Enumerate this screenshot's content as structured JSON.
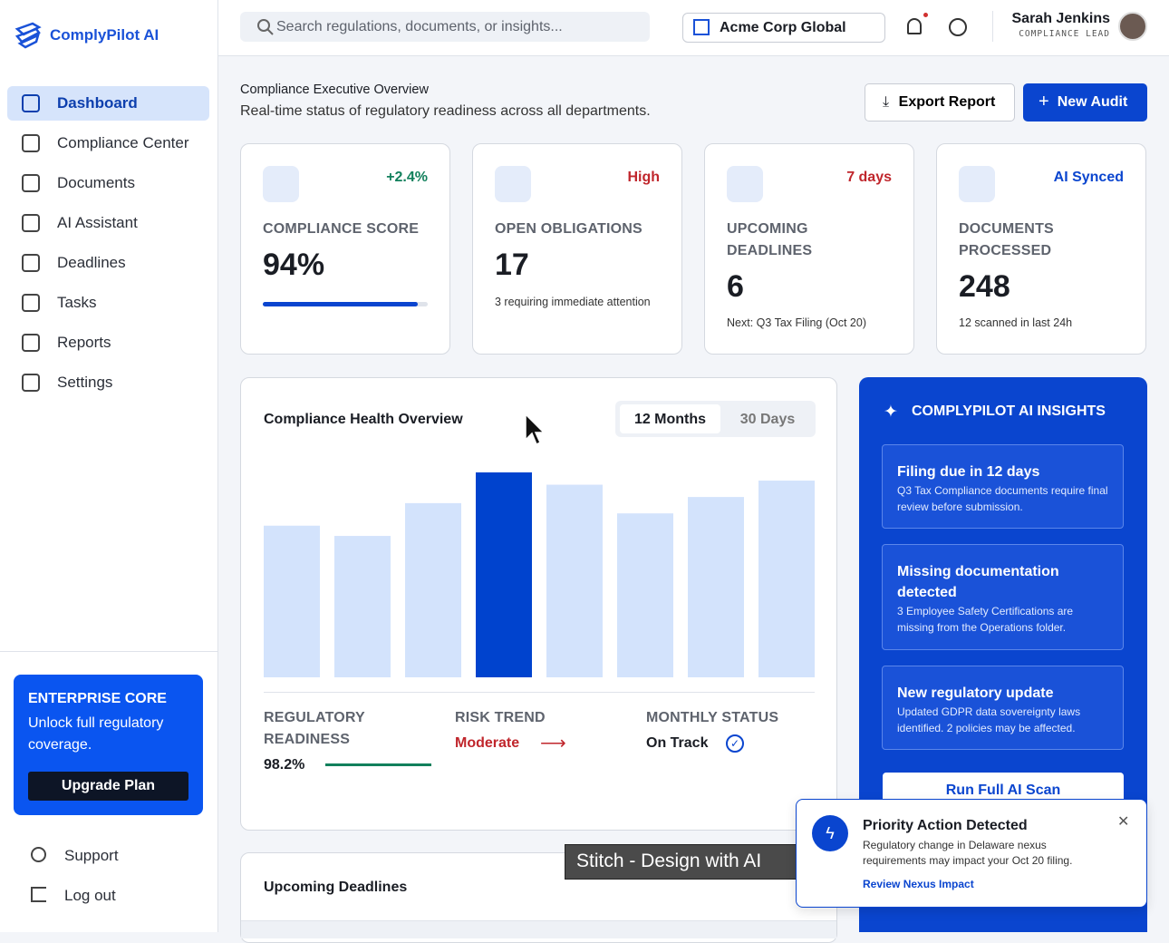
{
  "sidebar": {
    "brand": "ComplyPilot AI",
    "nav": [
      "Dashboard",
      "Compliance Center",
      "Documents",
      "AI Assistant",
      "Deadlines",
      "Tasks",
      "Reports",
      "Settings"
    ],
    "promo": {
      "title": "ENTERPRISE CORE",
      "text": "Unlock full regulatory coverage.",
      "button": "Upgrade Plan"
    },
    "footer": [
      "Support",
      "Log out"
    ]
  },
  "header": {
    "search": "Search regulations, documents, or insights...",
    "org": "Acme Corp Global",
    "user": {
      "name": "Sarah Jenkins",
      "role": "COMPLIANCE LEAD"
    }
  },
  "overview": {
    "title": "Compliance Executive Overview",
    "subtitle": "Real-time status of regulatory readiness across all departments.",
    "export": "Export Report",
    "new_audit": "New Audit"
  },
  "stats": [
    {
      "badge": "+2.4%",
      "label": "COMPLIANCE SCORE",
      "value": "94%",
      "note": ""
    },
    {
      "badge": "High",
      "label": "OPEN OBLIGATIONS",
      "value": "17",
      "note": "3 requiring immediate attention"
    },
    {
      "badge": "7 days",
      "label": "UPCOMING DEADLINES",
      "value": "6",
      "note": "Next: Q3 Tax Filing (Oct 20)"
    },
    {
      "badge": "AI Synced",
      "label": "DOCUMENTS PROCESSED",
      "value": "248",
      "note": "12 scanned in last 24h"
    }
  ],
  "chart_data": {
    "type": "bar",
    "title": "Compliance Health Overview",
    "tabs": [
      "12 Months",
      "30 Days"
    ],
    "categories": [
      null,
      null,
      null,
      null,
      null,
      null,
      null,
      null
    ],
    "values": [
      74,
      69,
      85,
      100,
      94,
      80,
      88,
      96
    ],
    "colors": [
      "#d3e3fc",
      "#d3e3fc",
      "#d3e3fc",
      "#0043ce",
      "#d3e3fc",
      "#d3e3fc",
      "#d3e3fc",
      "#d3e3fc"
    ],
    "ylim": [
      0,
      100
    ]
  },
  "summary": [
    {
      "label": "REGULATORY READINESS",
      "value": "98.2%"
    },
    {
      "label": "RISK TREND",
      "value": "Moderate"
    },
    {
      "label": "MONTHLY STATUS",
      "value": "On Track"
    }
  ],
  "insights": {
    "title": "COMPLYPILOT AI INSIGHTS",
    "items": [
      {
        "title": "Filing due in 12 days",
        "text": "Q3 Tax Compliance documents require final review before submission."
      },
      {
        "title": "Missing documentation detected",
        "text": "3 Employee Safety Certifications are missing from the Operations folder."
      },
      {
        "title": "New regulatory update",
        "text": "Updated GDPR data sovereignty laws identified. 2 policies may be affected."
      }
    ],
    "button": "Run Full AI Scan"
  },
  "deadlines": {
    "title": "Upcoming Deadlines"
  },
  "toast": {
    "title": "Priority Action Detected",
    "text": "Regulatory change in Delaware nexus requirements may impact your Oct 20 filing.",
    "link": "Review Nexus Impact"
  },
  "watermark": "Stitch - Design with AI"
}
